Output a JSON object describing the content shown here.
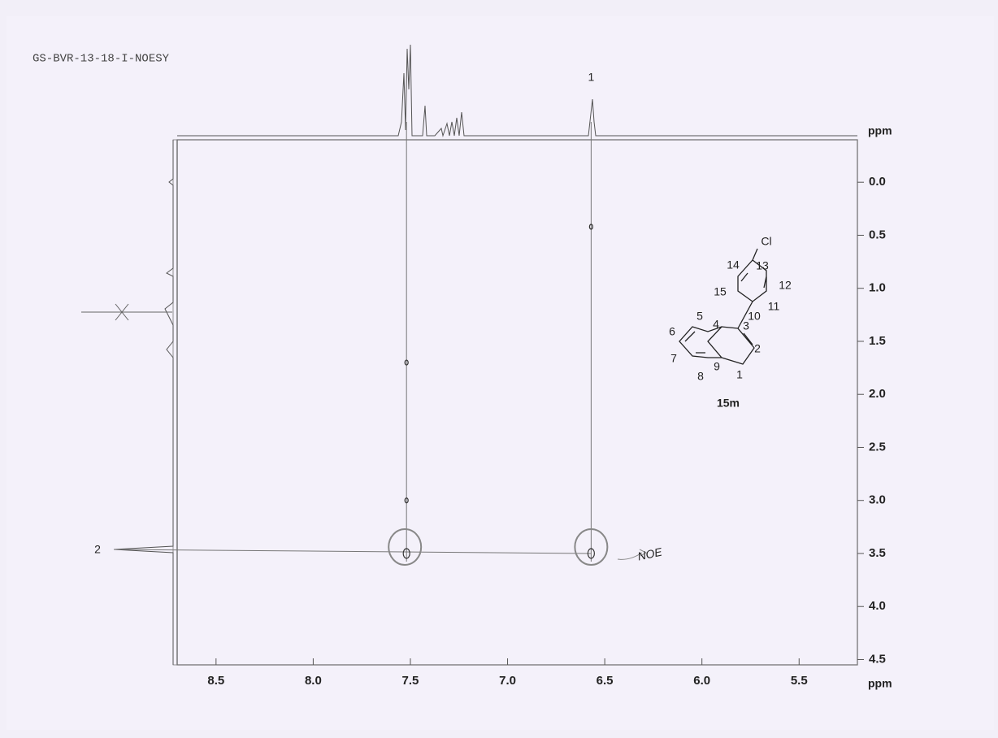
{
  "chart_data": {
    "type": "nmr2d",
    "title": "GS-BVR-13-18-I-NOESY",
    "xlabel": "ppm",
    "ylabel": "ppm",
    "xlim": [
      8.7,
      5.2
    ],
    "ylim": [
      -0.4,
      4.55
    ],
    "xticks": [
      8.5,
      {
        "value": 8,
        "label": "8.0"
      },
      7.5,
      {
        "value": 7,
        "label": "7.0"
      },
      6.5,
      {
        "value": 6,
        "label": "6.0"
      },
      5.5
    ],
    "yticks": [
      {
        "value": 0,
        "label": "0.0"
      },
      0.5,
      {
        "value": 1,
        "label": "1.0"
      },
      1.5,
      {
        "value": 2,
        "label": "2.0"
      },
      2.5,
      {
        "value": 3,
        "label": "3.0"
      },
      3.5,
      {
        "value": 4,
        "label": "4.0"
      },
      4.5
    ],
    "cross_peaks": {
      "x": [
        7.52,
        6.57,
        6.57,
        7.52,
        7.52
      ],
      "y": [
        3.5,
        3.5,
        0.42,
        3.0,
        1.7
      ]
    },
    "peak_labels": [
      "1",
      "2"
    ],
    "annotation": "NOE",
    "structure": {
      "labels": [
        "Cl",
        "13",
        "14",
        "12",
        "15",
        "11",
        "10",
        "5",
        "4",
        "3",
        "6",
        "2",
        "7",
        "8",
        "9",
        "1"
      ],
      "name": "15m"
    }
  }
}
